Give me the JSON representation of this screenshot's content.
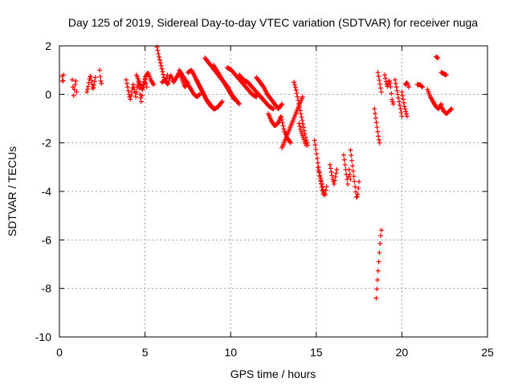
{
  "chart_data": {
    "type": "scatter",
    "title": "Day 125 of 2019, Sidereal Day-to-day VTEC variation (SDTVAR) for receiver nuga",
    "xlabel": "GPS time / hours",
    "ylabel": "SDTVAR / TECUs",
    "xlim": [
      0,
      25
    ],
    "ylim": [
      -10,
      2
    ],
    "xticks": [
      0,
      5,
      10,
      15,
      20,
      25
    ],
    "yticks": [
      -10,
      -8,
      -6,
      -4,
      -2,
      0,
      2
    ],
    "grid": true,
    "marker": "+",
    "color": "#ff0000",
    "series": [
      {
        "name": "SDTVAR",
        "segments": [
          {
            "x0": 0.15,
            "x1": 0.25,
            "y": [
              0.75,
              0.45,
              0.8
            ]
          },
          {
            "x0": 0.75,
            "x1": 1.0,
            "y": [
              0.6,
              0.3,
              -0.05,
              0.2,
              0.4,
              0.55,
              0.1
            ]
          },
          {
            "x0": 1.6,
            "x1": 2.1,
            "y": [
              0.1,
              0.3,
              0.6,
              0.8,
              0.5,
              0.2,
              0.4,
              0.7
            ]
          },
          {
            "x0": 2.35,
            "x1": 2.45,
            "y": [
              1.0,
              0.6,
              0.45
            ]
          },
          {
            "x0": 3.9,
            "x1": 5.1,
            "y": [
              0.6,
              0.3,
              0.0,
              -0.2,
              0.1,
              0.4,
              0.2,
              -0.1,
              0.3,
              0.5,
              0.0,
              -0.3,
              0.2,
              0.4,
              0.6,
              0.3
            ]
          },
          {
            "x0": 4.5,
            "x1": 5.5,
            "y": [
              0.8,
              0.5,
              0.2,
              0.7,
              0.9,
              0.6,
              0.4
            ]
          },
          {
            "x0": 5.7,
            "x1": 6.3,
            "y": [
              1.95,
              1.6,
              1.3,
              1.0,
              0.7,
              0.5,
              0.8
            ]
          },
          {
            "x0": 6.0,
            "x1": 7.5,
            "y": [
              0.5,
              0.6,
              0.4,
              0.8,
              0.5,
              0.7,
              0.9,
              0.6,
              0.3,
              0.5
            ]
          },
          {
            "x0": 7.0,
            "x1": 8.2,
            "y": [
              1.0,
              0.8,
              0.6,
              0.4,
              0.2,
              0.0,
              -0.1,
              0.0
            ]
          },
          {
            "x0": 7.5,
            "x1": 9.0,
            "y": [
              0.9,
              1.0,
              0.7,
              0.4,
              0.1,
              -0.2,
              -0.4,
              -0.6
            ]
          },
          {
            "x0": 8.0,
            "x1": 9.5,
            "y": [
              0.6,
              0.3,
              0.0,
              -0.3,
              -0.5,
              -0.6,
              -0.5,
              -0.3
            ]
          },
          {
            "x0": 8.5,
            "x1": 10.5,
            "y": [
              1.5,
              1.3,
              1.1,
              0.9,
              0.7,
              0.5,
              0.3,
              0.0,
              -0.2,
              -0.4
            ]
          },
          {
            "x0": 9.0,
            "x1": 10.2,
            "y": [
              1.2,
              1.0,
              0.8,
              0.6,
              0.4,
              0.2,
              0.0,
              -0.2
            ]
          },
          {
            "x0": 9.8,
            "x1": 11.5,
            "y": [
              1.1,
              1.0,
              0.8,
              0.6,
              0.4,
              0.2,
              0.0,
              -0.1
            ]
          },
          {
            "x0": 10.5,
            "x1": 12.5,
            "y": [
              0.8,
              0.6,
              0.5,
              0.3,
              0.1,
              -0.1,
              -0.3,
              -0.5,
              -0.6
            ]
          },
          {
            "x0": 11.5,
            "x1": 13.0,
            "y": [
              0.7,
              0.5,
              0.3,
              0.0,
              -0.2,
              -0.4,
              -0.6,
              -0.4
            ]
          },
          {
            "x0": 12.2,
            "x1": 13.5,
            "y": [
              -0.8,
              -1.1,
              -1.3,
              -1.2,
              -0.9,
              -1.5,
              -1.8,
              -2.0
            ]
          },
          {
            "x0": 13.0,
            "x1": 14.2,
            "y": [
              -2.2,
              -1.9,
              -1.6,
              -1.3,
              -1.0,
              -0.7,
              -0.4,
              -0.1
            ]
          },
          {
            "x0": 13.7,
            "x1": 14.5,
            "y": [
              0.5,
              0.2,
              -0.2,
              -0.6,
              -1.0,
              -1.4,
              -1.8,
              -2.1
            ]
          },
          {
            "x0": 14.0,
            "x1": 14.4,
            "y": [
              -1.2,
              -1.5,
              -1.7,
              -1.9,
              -2.1
            ]
          },
          {
            "x0": 14.9,
            "x1": 15.4,
            "y": [
              -1.9,
              -2.3,
              -2.7,
              -3.1,
              -3.5,
              -3.8,
              -4.1
            ]
          },
          {
            "x0": 15.1,
            "x1": 15.6,
            "y": [
              -3.0,
              -3.3,
              -3.6,
              -3.9,
              -4.2,
              -3.8
            ]
          },
          {
            "x0": 15.8,
            "x1": 16.2,
            "y": [
              -2.9,
              -3.2,
              -3.5,
              -3.7,
              -3.4,
              -3.1
            ]
          },
          {
            "x0": 16.6,
            "x1": 17.0,
            "y": [
              -2.5,
              -2.9,
              -3.3,
              -3.7,
              -3.1,
              -3.5
            ]
          },
          {
            "x0": 17.0,
            "x1": 17.5,
            "y": [
              -2.3,
              -2.7,
              -3.1,
              -3.5,
              -3.9,
              -4.3,
              -4.1,
              -3.6
            ]
          },
          {
            "x0": 18.4,
            "x1": 18.7,
            "y": [
              -0.6,
              -0.9,
              -1.2,
              -1.5,
              -1.8,
              -2.0
            ]
          },
          {
            "x0": 18.5,
            "x1": 18.8,
            "y": [
              -8.4,
              -7.9,
              -7.4,
              -6.9,
              -6.4,
              -5.9,
              -5.6
            ]
          },
          {
            "x0": 18.6,
            "x1": 18.8,
            "y": [
              0.9,
              0.5,
              0.1
            ]
          },
          {
            "x0": 19.0,
            "x1": 19.5,
            "y": [
              0.8,
              0.5,
              0.3,
              0.6,
              0.4,
              -0.2,
              -0.4
            ]
          },
          {
            "x0": 19.6,
            "x1": 20.0,
            "y": [
              0.6,
              0.3,
              0.0,
              -0.3,
              -0.6,
              -0.9
            ]
          },
          {
            "x0": 20.0,
            "x1": 20.3,
            "y": [
              0.1,
              -0.2,
              -0.5,
              -0.7,
              -0.9
            ]
          },
          {
            "x0": 20.2,
            "x1": 20.4,
            "y": [
              0.4,
              0.5,
              0.3
            ]
          },
          {
            "x0": 20.9,
            "x1": 21.2,
            "y": [
              0.4,
              0.4,
              0.3
            ]
          },
          {
            "x0": 21.5,
            "x1": 22.3,
            "y": [
              0.2,
              -0.1,
              -0.3,
              -0.5,
              -0.6,
              -0.4
            ]
          },
          {
            "x0": 22.0,
            "x1": 22.1,
            "y": [
              1.55,
              1.5
            ]
          },
          {
            "x0": 22.3,
            "x1": 22.6,
            "y": [
              0.9,
              0.85,
              0.8
            ]
          },
          {
            "x0": 22.3,
            "x1": 22.9,
            "y": [
              -0.5,
              -0.7,
              -0.8,
              -0.7,
              -0.6
            ]
          }
        ]
      }
    ]
  }
}
